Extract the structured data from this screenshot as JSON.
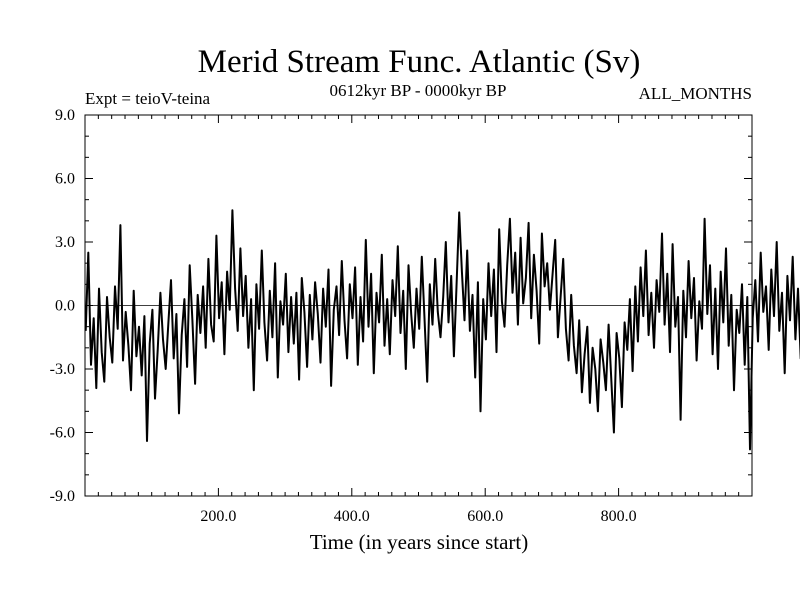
{
  "chart_data": {
    "type": "line",
    "title": "Merid Stream Func. Atlantic (Sv)",
    "subtitle_left": "Expt = teioV-teina",
    "subtitle_center": "0612kyr BP - 0000kyr BP",
    "subtitle_right": "ALL_MONTHS",
    "xlabel": "Time (in years since start)",
    "ylabel": "",
    "xlim": [
      0,
      1000
    ],
    "ylim": [
      -9,
      9
    ],
    "x_ticks": [
      200,
      400,
      600,
      800
    ],
    "x_tick_labels": [
      "200.0",
      "400.0",
      "600.0",
      "800.0"
    ],
    "y_ticks": [
      -9,
      -6,
      -3,
      0,
      3,
      6,
      9
    ],
    "y_tick_labels": [
      "-9.0",
      "-6.0",
      "-3.0",
      "0.0",
      "3.0",
      "6.0",
      "9.0"
    ],
    "zero_line": true,
    "grid": false,
    "series": [
      {
        "name": "Merid Stream Func. Atlantic",
        "color": "#000000",
        "x_start": 1,
        "x_step": 4,
        "values": [
          -1.2,
          2.5,
          -2.8,
          -0.6,
          -3.9,
          0.8,
          -2.2,
          -3.6,
          0.4,
          -1.5,
          -2.7,
          0.9,
          -1.1,
          3.8,
          -2.6,
          -0.3,
          -1.9,
          -4.0,
          0.7,
          -2.4,
          -1.0,
          -3.3,
          -0.5,
          -6.4,
          -1.8,
          -0.2,
          -4.4,
          -2.1,
          0.6,
          -1.6,
          -3.0,
          -0.8,
          1.2,
          -2.5,
          -0.4,
          -5.1,
          -1.4,
          0.3,
          -2.9,
          1.9,
          -0.7,
          -3.7,
          0.5,
          -1.3,
          0.9,
          -2.0,
          2.2,
          -0.9,
          -1.7,
          3.3,
          -0.6,
          1.1,
          -2.3,
          1.6,
          -0.2,
          4.5,
          0.8,
          -1.2,
          2.7,
          -0.5,
          1.4,
          -2.0,
          0.3,
          -4.0,
          1.0,
          -1.1,
          2.6,
          -0.8,
          -2.6,
          0.7,
          -1.5,
          2.0,
          -3.4,
          0.2,
          -0.9,
          1.5,
          -2.2,
          0.4,
          -1.8,
          0.6,
          -3.5,
          1.3,
          -0.3,
          -2.9,
          0.5,
          -1.6,
          1.1,
          -0.4,
          -2.7,
          0.8,
          -1.0,
          1.7,
          -3.8,
          -0.2,
          0.9,
          -1.4,
          2.1,
          -0.7,
          -2.5,
          1.0,
          -0.6,
          1.8,
          -2.8,
          0.4,
          -1.7,
          3.1,
          -1.0,
          1.5,
          -3.2,
          0.6,
          -0.8,
          2.4,
          -1.9,
          0.3,
          -2.3,
          1.2,
          -0.5,
          2.8,
          -1.3,
          0.7,
          -3.0,
          1.9,
          -0.4,
          -2.0,
          0.8,
          -1.1,
          2.3,
          -0.6,
          -3.6,
          1.0,
          -0.9,
          2.2,
          -0.3,
          -1.5,
          0.4,
          3.0,
          -0.8,
          1.4,
          -2.4,
          0.9,
          4.4,
          1.6,
          -0.7,
          2.6,
          -1.2,
          0.5,
          -3.4,
          1.1,
          -5.0,
          0.3,
          -1.6,
          2.0,
          -0.5,
          1.7,
          -2.2,
          3.6,
          0.2,
          -1.0,
          1.9,
          4.1,
          0.6,
          2.5,
          -0.9,
          3.2,
          0.1,
          1.3,
          3.9,
          -0.6,
          2.4,
          0.7,
          -1.8,
          3.4,
          0.9,
          2.0,
          -0.2,
          1.5,
          3.1,
          -1.5,
          0.4,
          2.2,
          -1.1,
          -2.6,
          0.5,
          -1.9,
          -3.2,
          -0.7,
          -4.1,
          -2.3,
          -1.0,
          -4.6,
          -2.0,
          -3.0,
          -5.0,
          -1.6,
          -2.7,
          -4.0,
          -0.9,
          -3.5,
          -6.0,
          -1.3,
          -2.5,
          -4.8,
          -0.8,
          -2.1,
          0.3,
          -3.1,
          0.9,
          -1.7,
          1.8,
          -0.5,
          2.6,
          -1.4,
          0.6,
          -2.0,
          1.2,
          -0.3,
          3.4,
          -0.9,
          1.5,
          -2.2,
          2.9,
          -1.0,
          0.4,
          -5.4,
          0.7,
          -1.5,
          2.1,
          -0.6,
          1.3,
          -2.6,
          0.2,
          -1.1,
          4.1,
          -0.4,
          1.9,
          -2.3,
          0.8,
          -3.0,
          1.6,
          -0.8,
          2.7,
          -1.9,
          0.5,
          -4.0,
          -0.2,
          -1.3,
          1.0,
          -2.8,
          0.4,
          -6.8,
          -0.6,
          1.2,
          -1.7,
          2.5,
          -0.3,
          0.9,
          -2.1,
          1.7,
          -0.5,
          3.0,
          -1.2,
          0.6,
          -3.2,
          1.4,
          -0.7,
          2.3,
          -1.6,
          0.8,
          -2.5,
          1.1,
          3.3,
          -0.4,
          2.0,
          0.3,
          -1.0,
          2.8,
          -0.2,
          1.6,
          4.1,
          0.5,
          6.0,
          2.2,
          -0.6,
          3.0,
          1.0,
          -1.5,
          2.4,
          0.2,
          -2.0,
          1.3,
          -0.8,
          3.2,
          -1.1,
          0.6,
          -2.7,
          1.8,
          -0.4,
          -3.6,
          0.9,
          -4.4,
          -1.2,
          0.3,
          -2.5,
          1.5,
          -3.8,
          0.7,
          -1.9,
          2.5,
          -0.6,
          1.2,
          -2.8,
          0.4,
          -3.5,
          1.9,
          0.2,
          3.1,
          -0.5,
          1.6,
          -1.2,
          2.2,
          0.8,
          -0.9,
          3.3,
          0.3,
          1.7,
          -1.5,
          2.7,
          0.6,
          -0.7,
          1.9,
          3.6,
          0.1,
          2.3,
          -1.0,
          1.2,
          -2.6,
          0.7,
          -1.8,
          2.9,
          0.5,
          -5.8,
          1.0,
          -1.4,
          2.4,
          -0.5,
          1.5,
          -3.0,
          -6.0,
          0.8,
          -1.1,
          2.0,
          -0.3,
          1.3,
          -2.2,
          0.6,
          2.6,
          -0.9,
          1.8,
          0.2,
          3.9,
          -1.6,
          4.8,
          0.4,
          2.9,
          -1.2,
          1.5,
          2.6,
          -1.0,
          1.1
        ]
      }
    ]
  }
}
